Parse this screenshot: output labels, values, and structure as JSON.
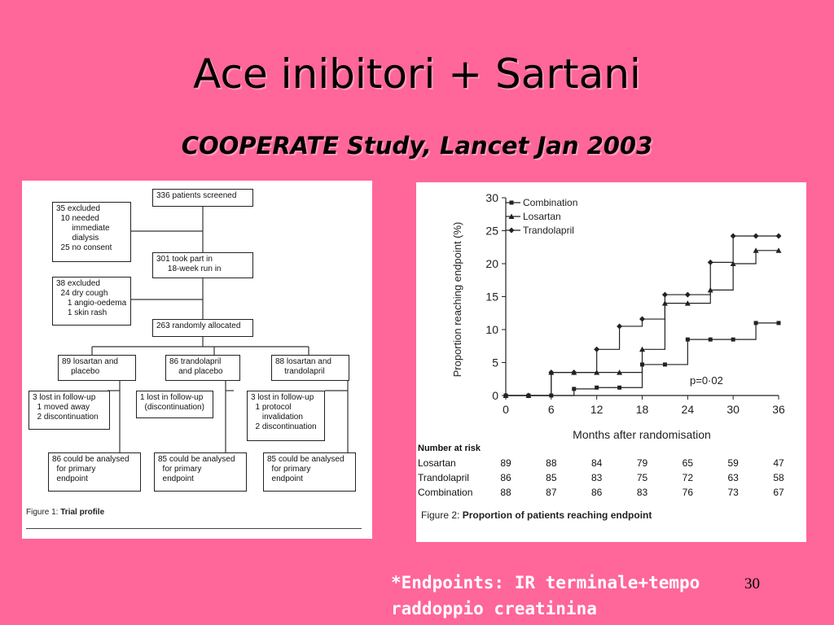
{
  "slide": {
    "title": "Ace inibitori + Sartani",
    "subtitle": "COOPERATE Study, Lancet Jan 2003",
    "footer_line1": "*Endpoints: IR terminale+tempo",
    "footer_line2": "raddoppio creatinina",
    "page_number": "30"
  },
  "trial_profile": {
    "screened": "336 patients screened",
    "excluded1": "35 excluded\n  10 needed\n       immediate\n       dialysis\n  25 no consent",
    "runin": "301 took part in\n     18-week run in",
    "excluded2": "38 excluded\n  24 dry cough\n     1 angio-oedema\n     1 skin rash",
    "randomised": "263 randomly allocated",
    "arm1": "89 losartan and\n    placebo",
    "arm2": "86 trandolapril\n    and placebo",
    "arm3": "88 losartan and\n    trandolapril",
    "lost1": "3 lost in follow-up\n  1 moved away\n  2 discontinuation",
    "lost2": "1 lost in follow-up\n  (discontinuation)",
    "lost3": "3 lost in follow-up\n  1 protocol\n     invalidation\n  2 discontinuation",
    "anal1": "86 could be analysed\n  for primary\n  endpoint",
    "anal2": "85 could be analysed\n  for primary\n  endpoint",
    "anal3": "85 could be analysed\n  for primary\n  endpoint",
    "caption_prefix": "Figure 1: ",
    "caption_bold": "Trial profile"
  },
  "chart_data": {
    "type": "line",
    "step": true,
    "ylabel": "Proportion reaching endpoint (%)",
    "xlabel": "Months after randomisation",
    "x_ticks": [
      0,
      6,
      12,
      18,
      24,
      30,
      36
    ],
    "y_ticks": [
      0,
      5,
      10,
      15,
      20,
      25,
      30
    ],
    "xlim": [
      0,
      36
    ],
    "ylim": [
      0,
      30
    ],
    "annotation": "p=0·02",
    "series": [
      {
        "name": "Combination",
        "marker": "square",
        "points": [
          [
            0,
            0
          ],
          [
            3,
            0
          ],
          [
            6,
            0
          ],
          [
            9,
            1
          ],
          [
            12,
            1.2
          ],
          [
            15,
            1.2
          ],
          [
            18,
            4.7
          ],
          [
            21,
            4.7
          ],
          [
            24,
            8.5
          ],
          [
            27,
            8.5
          ],
          [
            30,
            8.5
          ],
          [
            33,
            11
          ],
          [
            36,
            11
          ]
        ]
      },
      {
        "name": "Losartan",
        "marker": "triangle",
        "points": [
          [
            0,
            0
          ],
          [
            3,
            0
          ],
          [
            6,
            3.5
          ],
          [
            9,
            3.5
          ],
          [
            12,
            3.5
          ],
          [
            15,
            3.5
          ],
          [
            18,
            7
          ],
          [
            21,
            14
          ],
          [
            24,
            14
          ],
          [
            27,
            16
          ],
          [
            30,
            20
          ],
          [
            33,
            22
          ],
          [
            36,
            22
          ]
        ]
      },
      {
        "name": "Trandolapril",
        "marker": "diamond",
        "points": [
          [
            0,
            0
          ],
          [
            3,
            0
          ],
          [
            6,
            3.5
          ],
          [
            9,
            3.5
          ],
          [
            12,
            7
          ],
          [
            15,
            10.5
          ],
          [
            18,
            11.6
          ],
          [
            21,
            15.3
          ],
          [
            24,
            15.3
          ],
          [
            27,
            20.2
          ],
          [
            30,
            24.2
          ],
          [
            33,
            24.2
          ],
          [
            36,
            24.2
          ]
        ]
      }
    ],
    "risk_table": {
      "header": "Number at risk",
      "rows": [
        {
          "label": "Losartan",
          "values": [
            89,
            88,
            84,
            79,
            65,
            59,
            47
          ]
        },
        {
          "label": "Trandolapril",
          "values": [
            86,
            85,
            83,
            75,
            72,
            63,
            58
          ]
        },
        {
          "label": "Combination",
          "values": [
            88,
            87,
            86,
            83,
            76,
            73,
            67
          ]
        }
      ]
    },
    "caption_prefix": "Figure 2: ",
    "caption_bold": "Proportion of patients reaching endpoint"
  }
}
